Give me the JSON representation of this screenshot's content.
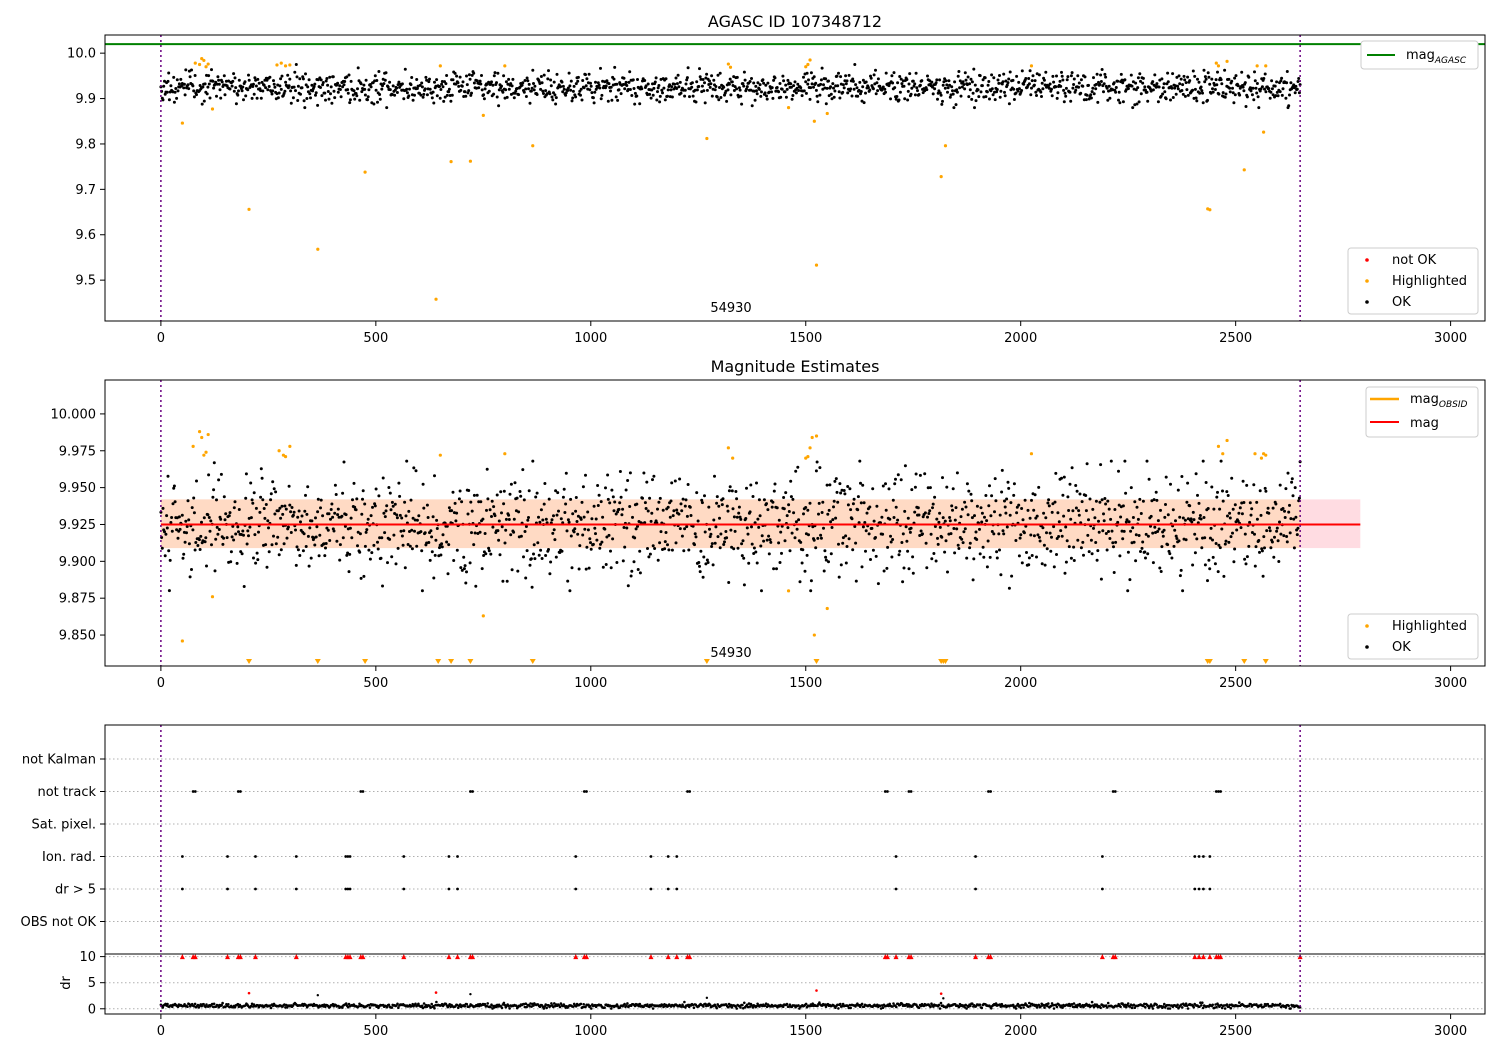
{
  "chart_data": [
    {
      "type": "scatter",
      "title": "AGASC ID 107348712",
      "xlim": [
        -130,
        3080
      ],
      "ylim": [
        9.41,
        10.04
      ],
      "xticks": [
        "0",
        "500",
        "1000",
        "1500",
        "2000",
        "2500",
        "3000"
      ],
      "yticks": [
        "9.5",
        "9.6",
        "9.7",
        "9.8",
        "9.9",
        "10.0"
      ],
      "grid": false,
      "obsid_label": "54930",
      "obsid_bounds": [
        0,
        2650
      ],
      "reference_line": {
        "name": "mag_AGASC",
        "value": 10.02,
        "color": "#008000"
      },
      "legend_top": {
        "placement": "top-right",
        "entries": [
          {
            "label": "mag",
            "subscript": "AGASC",
            "color": "#008000"
          }
        ]
      },
      "legend_bottom": {
        "placement": "lower-right",
        "entries": [
          {
            "label": "not OK",
            "color": "#ff0000"
          },
          {
            "label": "Highlighted",
            "color": "#ffa500"
          },
          {
            "label": "OK",
            "color": "#000000"
          }
        ]
      },
      "ok_series": {
        "name": "OK",
        "color": "#000000",
        "x_range": [
          0,
          2650
        ],
        "count": 1600,
        "y_mean": 9.925,
        "y_sigma": 0.017
      },
      "highlighted": {
        "name": "Highlighted",
        "color": "#ffa500",
        "x": [
          50,
          80,
          90,
          95,
          100,
          105,
          110,
          120,
          205,
          270,
          280,
          290,
          300,
          365,
          475,
          640,
          650,
          675,
          720,
          750,
          800,
          865,
          1270,
          1320,
          1325,
          1460,
          1500,
          1505,
          1510,
          1520,
          1525,
          1550,
          1815,
          1825,
          2025,
          2435,
          2440,
          2455,
          2460,
          2480,
          2520,
          2550,
          2565,
          2570
        ],
        "y": [
          9.846,
          9.978,
          9.975,
          9.988,
          9.984,
          9.97,
          9.976,
          9.877,
          9.656,
          9.974,
          9.978,
          9.972,
          9.974,
          9.568,
          9.738,
          9.458,
          9.972,
          9.761,
          9.762,
          9.863,
          9.972,
          9.796,
          9.812,
          9.976,
          9.969,
          9.88,
          9.97,
          9.975,
          9.985,
          9.85,
          9.533,
          9.867,
          9.728,
          9.796,
          9.972,
          9.657,
          9.655,
          9.978,
          9.972,
          9.982,
          9.743,
          9.972,
          9.826,
          9.972
        ]
      }
    },
    {
      "type": "scatter",
      "title": "Magnitude Estimates",
      "xlim": [
        -130,
        3080
      ],
      "ylim": [
        9.829,
        10.023
      ],
      "xticks": [
        "0",
        "500",
        "1000",
        "1500",
        "2000",
        "2500",
        "3000"
      ],
      "yticks": [
        "9.850",
        "9.875",
        "9.900",
        "9.925",
        "9.950",
        "9.975",
        "10.000"
      ],
      "grid": false,
      "obsid_label": "54930",
      "obsid_bounds": [
        0,
        2650
      ],
      "mag_line": {
        "name": "mag",
        "value": 9.925,
        "x_range": [
          0,
          2790
        ],
        "color": "#ff0000"
      },
      "mag_band": {
        "low": 9.909,
        "high": 9.942,
        "x_range": [
          0,
          2790
        ],
        "color": "#ffc0cb"
      },
      "obsid_band": {
        "low": 9.909,
        "high": 9.942,
        "x_range": [
          0,
          2650
        ],
        "color": "#ffdab9"
      },
      "legend_top": {
        "placement": "top-right",
        "entries": [
          {
            "label": "mag",
            "subscript": "OBSID",
            "color": "#ffa500"
          },
          {
            "label": "mag",
            "subscript": "",
            "color": "#ff0000"
          }
        ]
      },
      "legend_bottom": {
        "placement": "lower-right",
        "entries": [
          {
            "label": "Highlighted",
            "color": "#ffa500"
          },
          {
            "label": "OK",
            "color": "#000000"
          }
        ]
      },
      "ok_series": {
        "name": "OK",
        "color": "#000000",
        "x_range": [
          0,
          2650
        ],
        "count": 1600,
        "y_mean": 9.925,
        "y_sigma": 0.017
      },
      "highlighted": {
        "name": "Highlighted",
        "color": "#ffa500",
        "x": [
          50,
          75,
          90,
          95,
          100,
          105,
          110,
          120,
          275,
          285,
          290,
          300,
          650,
          750,
          800,
          1320,
          1330,
          1460,
          1500,
          1505,
          1510,
          1515,
          1520,
          1525,
          1550,
          2025,
          2460,
          2470,
          2480,
          2545,
          2560,
          2565,
          2570
        ],
        "y": [
          9.846,
          9.978,
          9.988,
          9.984,
          9.972,
          9.974,
          9.986,
          9.876,
          9.975,
          9.972,
          9.971,
          9.978,
          9.972,
          9.863,
          9.973,
          9.977,
          9.97,
          9.88,
          9.97,
          9.971,
          9.977,
          9.984,
          9.85,
          9.985,
          9.868,
          9.973,
          9.978,
          9.973,
          9.982,
          9.973,
          9.97,
          9.973,
          9.972
        ]
      },
      "below_range_markers": {
        "color": "#ffa500",
        "x": [
          205,
          365,
          475,
          645,
          675,
          720,
          865,
          1270,
          1525,
          1815,
          1820,
          1825,
          2435,
          2440,
          2520,
          2570
        ]
      }
    },
    {
      "type": "scatter",
      "title": "",
      "xlim": [
        -130,
        3080
      ],
      "xticks": [
        "0",
        "500",
        "1000",
        "1500",
        "2000",
        "2500",
        "3000"
      ],
      "categories": [
        "not Kalman",
        "not track",
        "Sat. pixel.",
        "Ion. rad.",
        "dr > 5",
        "OBS not OK"
      ],
      "flags": {
        "not Kalman": [],
        "not track": [
          75,
          80,
          180,
          185,
          465,
          470,
          720,
          725,
          985,
          990,
          1225,
          1230,
          1685,
          1690,
          1740,
          1745,
          1925,
          1930,
          2215,
          2220,
          2455,
          2460,
          2465
        ],
        "Sat. pixel.": [],
        "Ion. rad.": [
          50,
          155,
          220,
          315,
          430,
          435,
          440,
          565,
          670,
          690,
          965,
          1140,
          1180,
          1200,
          1710,
          1895,
          2190,
          2405,
          2415,
          2425,
          2440
        ],
        "dr > 5": [
          50,
          155,
          220,
          315,
          430,
          435,
          440,
          565,
          670,
          690,
          965,
          1140,
          1180,
          1200,
          1710,
          1895,
          2190,
          2405,
          2415,
          2425,
          2440
        ],
        "OBS not OK": []
      },
      "dr_panel": {
        "ylabel": "dr",
        "yticks": [
          "0",
          "5",
          "10"
        ],
        "ylim": [
          -1,
          10.5
        ],
        "ok_color": "#000000",
        "ok_mean": 0.6,
        "capped_value": 10,
        "capped_x": [
          50,
          75,
          80,
          155,
          180,
          185,
          220,
          315,
          430,
          435,
          440,
          465,
          470,
          565,
          670,
          690,
          720,
          725,
          965,
          985,
          990,
          1140,
          1180,
          1200,
          1225,
          1230,
          1685,
          1690,
          1710,
          1740,
          1745,
          1895,
          1925,
          1930,
          2190,
          2215,
          2220,
          2405,
          2415,
          2425,
          2440,
          2455,
          2460,
          2465,
          2650
        ],
        "red_points": {
          "x": [
            205,
            640,
            1525,
            1815
          ],
          "y": [
            3.0,
            3.1,
            3.5,
            2.9
          ]
        },
        "black_high": {
          "x": [
            365,
            720,
            1270,
            1820
          ],
          "y": [
            2.6,
            2.8,
            2.1,
            2.0
          ]
        }
      }
    }
  ]
}
